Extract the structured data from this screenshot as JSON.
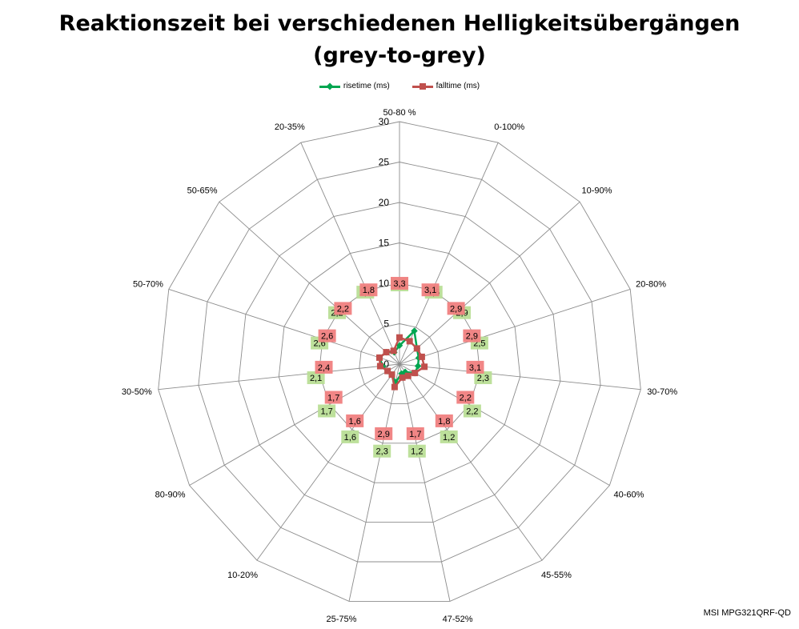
{
  "title_line1": "Reaktionszeit bei verschiedenen Helligkeitsübergängen",
  "title_line2": "(grey-to-grey)",
  "footer": "MSI MPG321QRF-QD",
  "chart_data": {
    "type": "radar",
    "title": "Reaktionszeit bei verschiedenen Helligkeitsübergängen (grey-to-grey)",
    "categories": [
      "50-80 %",
      "0-100%",
      "10-90%",
      "20-80%",
      "30-70%",
      "40-60%",
      "45-55%",
      "47-52%",
      "25-75%",
      "10-20%",
      "80-90%",
      "30-50%",
      "50-70%",
      "50-65%",
      "20-35%"
    ],
    "axis_ticks": [
      0,
      5,
      10,
      15,
      20,
      25,
      30
    ],
    "rlim": [
      0,
      30
    ],
    "legend_position": "top",
    "grid": true,
    "series": [
      {
        "name": "risetime (ms)",
        "color": "#00a650",
        "marker": "diamond",
        "label_bg": "#b9de96",
        "values": [
          2.3,
          4.5,
          2.9,
          2.5,
          2.3,
          2.2,
          1.2,
          1.2,
          2.3,
          1.6,
          1.7,
          2.1,
          2.6,
          2.2,
          1.6
        ]
      },
      {
        "name": "falltime (ms)",
        "color": "#c0504d",
        "marker": "square",
        "label_bg": "#f08080",
        "values": [
          3.3,
          3.1,
          2.9,
          2.9,
          3.1,
          2.2,
          1.8,
          1.7,
          2.9,
          1.6,
          1.7,
          2.4,
          2.6,
          2.2,
          1.8
        ]
      }
    ],
    "labels_text": {
      "rise": [
        "2,3",
        "4,5",
        "2,9",
        "2,5",
        "2,3",
        "2,2",
        "1,2",
        "1,2",
        "2,3",
        "1,6",
        "1,7",
        "2,1",
        "2,6",
        "2,2",
        "1,6"
      ],
      "fall": [
        "3,3",
        "3,1",
        "2,9",
        "2,9",
        "3,1",
        "2,2",
        "1,8",
        "1,7",
        "2,9",
        "1,6",
        "1,7",
        "2,4",
        "2,6",
        "2,2",
        "1,8"
      ]
    }
  }
}
